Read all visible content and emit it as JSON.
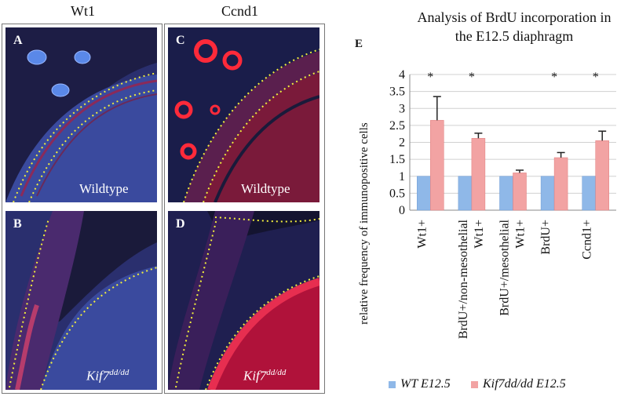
{
  "columns": {
    "left_title": "Wt1",
    "right_title": "Ccnd1"
  },
  "panels": [
    {
      "letter": "A",
      "caption": "Wildtype",
      "caption_sup": ""
    },
    {
      "letter": "B",
      "caption": "Kif7",
      "caption_sup": "dd/dd"
    },
    {
      "letter": "C",
      "caption": "Wildtype",
      "caption_sup": ""
    },
    {
      "letter": "D",
      "caption": "Kif7",
      "caption_sup": "dd/dd"
    }
  ],
  "colors": {
    "wt": "#8fb8e8",
    "kif7": "#f2a3a3",
    "nuclei": "#24285e",
    "signal": "#ff2a3a",
    "outline": "#f2ef3c"
  },
  "chart_data": {
    "type": "bar",
    "panel_letter": "E",
    "title_line1": "Analysis of BrdU incorporation in",
    "title_line2": "the E12.5 diaphragm",
    "ylabel": "relative frequency of immunopositive cells",
    "ylim": [
      0,
      4
    ],
    "yticks": [
      "0",
      "0.5",
      "1",
      "1.5",
      "2",
      "2.5",
      "3",
      "3.5",
      "4"
    ],
    "categories": [
      [
        "Wt1+"
      ],
      [
        "BrdU+/non-mesothelial",
        "Wt1+"
      ],
      [
        "BrdU+/mesothelial",
        "Wt1+"
      ],
      [
        "BrdU+"
      ],
      [
        "Ccnd1+"
      ]
    ],
    "series": [
      {
        "name": "WT E12.5",
        "values": [
          1,
          1,
          1,
          1,
          1
        ]
      },
      {
        "name": "Kif7dd/dd E12.5",
        "values": [
          2.65,
          2.12,
          1.1,
          1.55,
          2.05
        ],
        "errors": [
          0.7,
          0.15,
          0.08,
          0.15,
          0.28
        ]
      }
    ],
    "significance": [
      "*",
      "*",
      "",
      "*",
      "*"
    ],
    "grid": true,
    "legend_position": "bottom"
  }
}
